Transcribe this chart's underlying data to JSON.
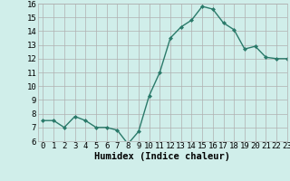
{
  "x": [
    0,
    1,
    2,
    3,
    4,
    5,
    6,
    7,
    8,
    9,
    10,
    11,
    12,
    13,
    14,
    15,
    16,
    17,
    18,
    19,
    20,
    21,
    22,
    23
  ],
  "y": [
    7.5,
    7.5,
    7.0,
    7.8,
    7.5,
    7.0,
    7.0,
    6.8,
    5.8,
    6.7,
    9.3,
    11.0,
    13.5,
    14.3,
    14.8,
    15.8,
    15.6,
    14.6,
    14.1,
    12.7,
    12.9,
    12.1,
    12.0,
    12.0
  ],
  "line_color": "#2a7a6a",
  "marker": "D",
  "marker_size": 2.0,
  "bg_color": "#d0eeea",
  "grid_color": "#b0b0b0",
  "xlabel": "Humidex (Indice chaleur)",
  "ylim": [
    6,
    16
  ],
  "xlim": [
    -0.5,
    23
  ],
  "yticks": [
    6,
    7,
    8,
    9,
    10,
    11,
    12,
    13,
    14,
    15,
    16
  ],
  "xticks": [
    0,
    1,
    2,
    3,
    4,
    5,
    6,
    7,
    8,
    9,
    10,
    11,
    12,
    13,
    14,
    15,
    16,
    17,
    18,
    19,
    20,
    21,
    22,
    23
  ],
  "tick_fontsize": 6.5,
  "xlabel_fontsize": 7.5,
  "line_width": 1.0
}
